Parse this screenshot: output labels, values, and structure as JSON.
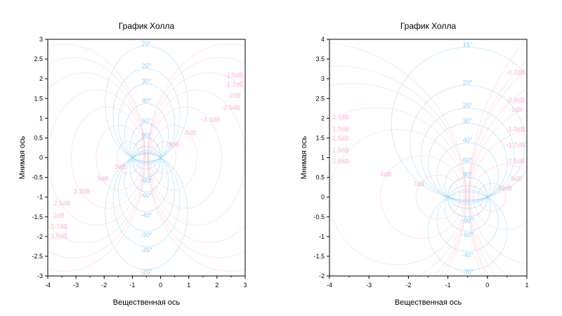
{
  "chart_data": [
    {
      "type": "line",
      "title": "График Холла",
      "xlabel": "Вещественная ось",
      "ylabel": "Мнимая ось",
      "xlim": [
        -4,
        3
      ],
      "ylim": [
        -3,
        3
      ],
      "xticks": [
        -4,
        -3,
        -2,
        -1,
        0,
        1,
        2,
        3
      ],
      "yticks": [
        -3,
        -2.5,
        -2,
        -1.5,
        -1,
        -0.5,
        0,
        0.5,
        1,
        1.5,
        2,
        2.5,
        3
      ],
      "grid": false,
      "magnitude_db": [
        -1.5,
        -1.7,
        -2,
        -2.5,
        -3.3,
        -5,
        -9,
        9,
        5,
        3.3,
        2.5,
        2,
        1.7,
        1.5
      ],
      "magnitude_labels": [
        "-1.5dB",
        "-1.7dB",
        "-2dB",
        "-2.5dB",
        "-3.3dB",
        "-5dB",
        "-9dB",
        "9dB",
        "5dB",
        "3.3dB",
        "2.5dB",
        "2dB",
        "1.7dB",
        "1.5dB"
      ],
      "phase_deg": [
        20,
        25,
        30,
        40,
        60,
        90,
        -90,
        -60,
        -40,
        -30,
        -25,
        -20
      ],
      "phase_labels": [
        "20°",
        "25°",
        "30°",
        "40°",
        "60°",
        "90°",
        "-90°",
        "-60°",
        "-40°",
        "-30°",
        "-25°",
        "-20°"
      ],
      "colors": {
        "magnitude": "#ffc0cb",
        "phase": "#87cefa"
      }
    },
    {
      "type": "line",
      "title": "График Холла",
      "xlabel": "Вещественная ось",
      "ylabel": "Мнимая ось",
      "xlim": [
        -4,
        1
      ],
      "ylim": [
        -2,
        4
      ],
      "xticks": [
        -4,
        -3,
        -2,
        -1,
        0,
        1
      ],
      "yticks": [
        -2,
        -1.5,
        -1,
        -0.5,
        0,
        0.5,
        1,
        1.5,
        2,
        2.5,
        3,
        3.5,
        4
      ],
      "grid": false,
      "magnitude_db": [
        1.1,
        1.3,
        1.5,
        1.9,
        2.5,
        4,
        7,
        -0.7,
        -0.9,
        -1,
        -1.3,
        -1.7,
        -2.5,
        -5,
        -10
      ],
      "magnitude_labels": [
        "1.1dB",
        "1.3dB",
        "1.5dB",
        "1.9dB",
        "2.5dB",
        "4dB",
        "7dB",
        "-0.7dB",
        "-0.9dB",
        "-1dB",
        "-1.3dB",
        "-1.7dB",
        "-2.5dB",
        "-5dB",
        "-10dB"
      ],
      "phase_deg": [
        15,
        20,
        25,
        30,
        40,
        60,
        90,
        -90,
        -60,
        -40,
        -30
      ],
      "phase_labels": [
        "15°",
        "20°",
        "25°",
        "30°",
        "40°",
        "60°",
        "90°",
        "-90°",
        "-60°",
        "-40°",
        "-30°"
      ],
      "colors": {
        "magnitude": "#ffc0cb",
        "phase": "#87cefa"
      }
    }
  ]
}
